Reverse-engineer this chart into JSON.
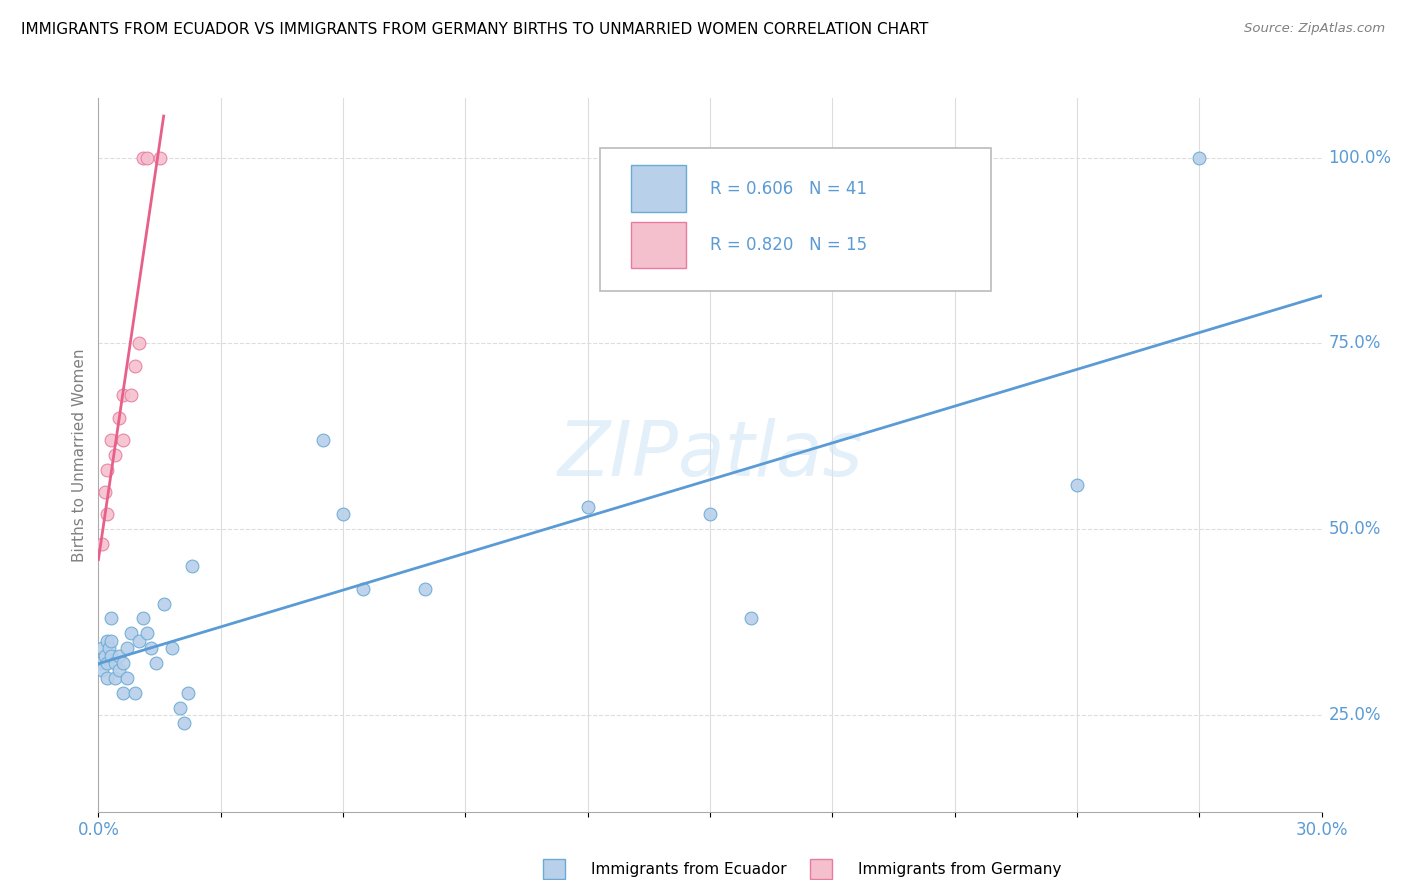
{
  "title": "IMMIGRANTS FROM ECUADOR VS IMMIGRANTS FROM GERMANY BIRTHS TO UNMARRIED WOMEN CORRELATION CHART",
  "source": "Source: ZipAtlas.com",
  "ylabel": "Births to Unmarried Women",
  "watermark": "ZIPatlas",
  "blue_scatter_color": "#b8d0ea",
  "blue_edge_color": "#6aaad4",
  "pink_scatter_color": "#f5c0ce",
  "pink_edge_color": "#e87ca0",
  "blue_line_color": "#5b9bd5",
  "pink_line_color": "#e8608a",
  "text_color": "#5b9bd5",
  "grid_color": "#dddddd",
  "legend_r1": "R = 0.606",
  "legend_n1": "N = 41",
  "legend_r2": "R = 0.820",
  "legend_n2": "N = 15",
  "xlim": [
    0,
    0.3
  ],
  "ylim": [
    0.12,
    1.08
  ],
  "ecuador_x": [
    0.0005,
    0.001,
    0.001,
    0.0015,
    0.002,
    0.002,
    0.002,
    0.0025,
    0.003,
    0.003,
    0.003,
    0.004,
    0.004,
    0.005,
    0.005,
    0.006,
    0.006,
    0.007,
    0.007,
    0.008,
    0.009,
    0.01,
    0.011,
    0.012,
    0.013,
    0.014,
    0.016,
    0.018,
    0.02,
    0.021,
    0.022,
    0.023,
    0.055,
    0.06,
    0.065,
    0.08,
    0.12,
    0.15,
    0.16,
    0.24,
    0.27
  ],
  "ecuador_y": [
    0.32,
    0.31,
    0.34,
    0.33,
    0.35,
    0.32,
    0.3,
    0.34,
    0.33,
    0.38,
    0.35,
    0.32,
    0.3,
    0.33,
    0.31,
    0.32,
    0.28,
    0.34,
    0.3,
    0.36,
    0.28,
    0.35,
    0.38,
    0.36,
    0.34,
    0.32,
    0.4,
    0.34,
    0.26,
    0.24,
    0.28,
    0.45,
    0.62,
    0.52,
    0.42,
    0.42,
    0.53,
    0.52,
    0.38,
    0.56,
    1.0
  ],
  "germany_x": [
    0.001,
    0.0015,
    0.002,
    0.002,
    0.003,
    0.004,
    0.005,
    0.006,
    0.006,
    0.008,
    0.009,
    0.01,
    0.011,
    0.012,
    0.015
  ],
  "germany_y": [
    0.48,
    0.55,
    0.52,
    0.58,
    0.62,
    0.6,
    0.65,
    0.62,
    0.68,
    0.68,
    0.72,
    0.75,
    1.0,
    1.0,
    1.0
  ]
}
